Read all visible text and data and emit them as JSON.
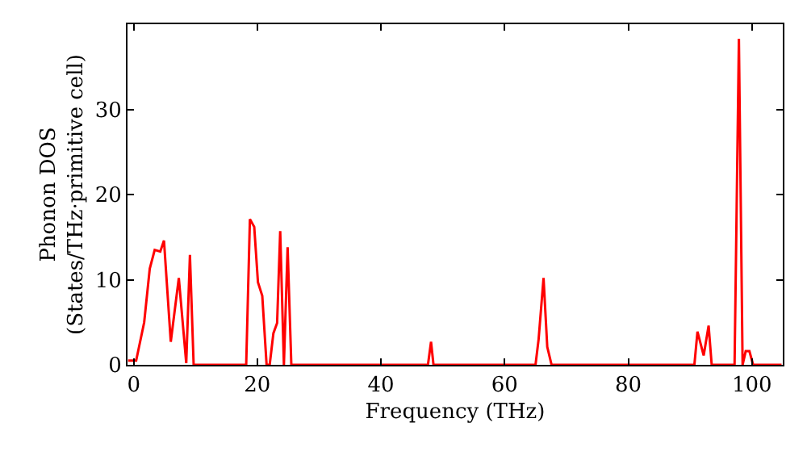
{
  "chart_data": {
    "type": "line",
    "xlabel": "Frequency (THz)",
    "ylabel": "Phonon DOS\n(States/THz·primitive cell)",
    "xlim": [
      -1,
      105
    ],
    "ylim": [
      0,
      40
    ],
    "xticks": [
      0,
      20,
      40,
      60,
      80,
      100
    ],
    "yticks": [
      0,
      10,
      20,
      30
    ],
    "legend": false,
    "marker": "none",
    "line_style": "solid",
    "series": [
      {
        "color": "#ff0000",
        "x": [
          -0.9,
          0.4,
          1.7,
          2.6,
          3.4,
          4.3,
          4.9,
          6.0,
          7.3,
          8.5,
          9.1,
          9.7,
          18.2,
          18.8,
          19.5,
          20.1,
          20.8,
          21.5,
          22.0,
          22.6,
          23.2,
          23.7,
          24.3,
          24.9,
          25.5,
          47.6,
          48.1,
          48.5,
          65.0,
          65.5,
          66.3,
          66.9,
          67.6,
          90.7,
          91.2,
          92.2,
          93.0,
          93.5,
          97.2,
          97.9,
          98.5,
          99.0,
          99.6,
          100.2,
          104.8
        ],
        "values": [
          0.5,
          0.5,
          5,
          11.3,
          13.5,
          13.3,
          14.6,
          2.7,
          10.2,
          0.2,
          12.9,
          0,
          0,
          17.1,
          16.2,
          9.7,
          8.1,
          0,
          0,
          3.7,
          4.9,
          15.7,
          0,
          13.8,
          0,
          0,
          2.7,
          0,
          0,
          3,
          10.2,
          2.1,
          0,
          0,
          3.9,
          1.1,
          4.6,
          0,
          0,
          38.3,
          0,
          1.6,
          1.6,
          0,
          0
        ]
      }
    ]
  }
}
